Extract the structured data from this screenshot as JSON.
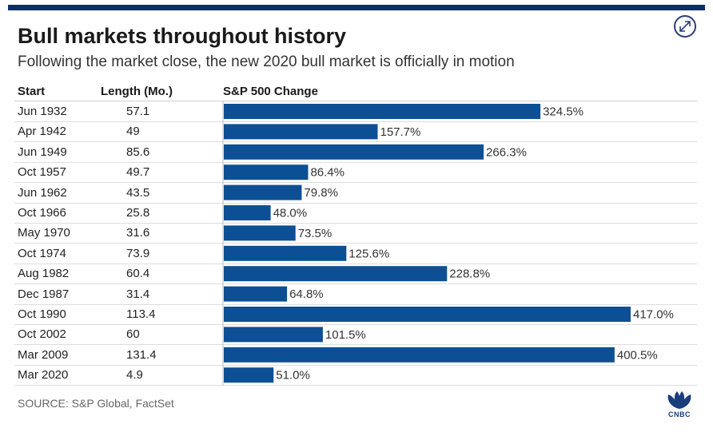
{
  "header": {
    "title": "Bull markets throughout history",
    "subtitle": "Following the market close, the new 2020 bull market is officially in motion"
  },
  "table": {
    "headers": {
      "start": "Start",
      "length": "Length (Mo.)",
      "change": "S&P 500 Change"
    }
  },
  "chart_data": {
    "type": "bar",
    "orientation": "horizontal",
    "categories": [
      "Jun 1932",
      "Apr 1942",
      "Jun 1949",
      "Oct 1957",
      "Jun 1962",
      "Oct 1966",
      "May 1970",
      "Oct 1974",
      "Aug 1982",
      "Dec 1987",
      "Oct 1990",
      "Oct 2002",
      "Mar 2009",
      "Mar 2020"
    ],
    "length_months": [
      "57.1",
      "49",
      "85.6",
      "49.7",
      "43.5",
      "25.8",
      "31.6",
      "73.9",
      "60.4",
      "31.4",
      "113.4",
      "60",
      "131.4",
      "4.9"
    ],
    "values": [
      324.5,
      157.7,
      266.3,
      86.4,
      79.8,
      48.0,
      73.5,
      125.6,
      228.8,
      64.8,
      417.0,
      101.5,
      400.5,
      51.0
    ],
    "value_labels": [
      "324.5%",
      "157.7%",
      "266.3%",
      "86.4%",
      "79.8%",
      "48.0%",
      "73.5%",
      "125.6%",
      "228.8%",
      "64.8%",
      "417.0%",
      "101.5%",
      "400.5%",
      "51.0%"
    ],
    "bar_color": "#0d4f94",
    "grid": false
  },
  "footer": {
    "source": "SOURCE: S&P Global, FactSet",
    "logo_text": "CNBC"
  },
  "icons": {
    "expand": "expand-icon",
    "logo": "peacock-logo-icon"
  },
  "colors": {
    "accent": "#0f2d6b",
    "bar": "#0d4f94",
    "logo": "#1a3d7c"
  }
}
